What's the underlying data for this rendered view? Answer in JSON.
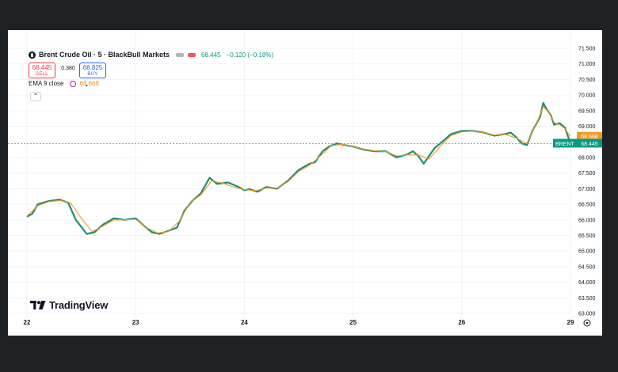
{
  "header": {
    "title": "Brent Crude Oil · 5 · BlackBull Markets",
    "price": "68.445",
    "change": "−0.120 (−0.18%)",
    "colors": {
      "pill_gray": "#b2b5be",
      "pill_red": "#f7525f"
    }
  },
  "trade": {
    "sell_price": "68.445",
    "sell_label": "SELL",
    "spread": "0.380",
    "buy_price": "68.825",
    "buy_label": "BUY"
  },
  "indicator": {
    "label": "EMA 9 close",
    "value": "68.668"
  },
  "watermark": "TradingView",
  "price_tags": {
    "ema": {
      "text": "68.668",
      "color": "#f59a23"
    },
    "last": {
      "symbol": "BRENT",
      "text": "68.445",
      "color": "#089981"
    }
  },
  "colors": {
    "line": "#1f8f6e",
    "ema": "#f59a23",
    "grid": "#f0f3fa",
    "dashed_price_line": "#26a69a"
  },
  "chart_data": {
    "type": "line",
    "series": [
      {
        "name": "Brent Crude Oil",
        "color": "#1f8f6e",
        "x": [
          22.0,
          22.05,
          22.1,
          22.2,
          22.3,
          22.38,
          22.45,
          22.55,
          22.62,
          22.7,
          22.8,
          22.9,
          23.0,
          23.08,
          23.15,
          23.22,
          23.3,
          23.38,
          23.45,
          23.52,
          23.6,
          23.68,
          23.75,
          23.85,
          23.95,
          24.0,
          24.05,
          24.12,
          24.2,
          24.3,
          24.4,
          24.5,
          24.6,
          24.65,
          24.72,
          24.78,
          24.85,
          24.92,
          25.0,
          25.1,
          25.2,
          25.3,
          25.4,
          25.5,
          25.55,
          25.6,
          25.65,
          25.7,
          25.75,
          25.82,
          25.9,
          26.0,
          26.1,
          26.2,
          26.3,
          26.4,
          26.45,
          26.5,
          26.55,
          26.6,
          26.65,
          26.72,
          26.75,
          26.78,
          26.82,
          26.85,
          26.9,
          26.95,
          27.0
        ],
        "values": [
          66.1,
          66.2,
          66.5,
          66.6,
          66.65,
          66.55,
          66.0,
          65.55,
          65.6,
          65.85,
          66.05,
          66.0,
          66.05,
          65.8,
          65.6,
          65.55,
          65.65,
          65.75,
          66.3,
          66.6,
          66.85,
          67.35,
          67.15,
          67.2,
          67.05,
          66.95,
          66.98,
          66.9,
          67.05,
          67.0,
          67.25,
          67.6,
          67.8,
          67.85,
          68.2,
          68.35,
          68.45,
          68.4,
          68.35,
          68.25,
          68.2,
          68.2,
          68.0,
          68.1,
          68.2,
          68.05,
          67.8,
          68.05,
          68.3,
          68.5,
          68.75,
          68.85,
          68.85,
          68.8,
          68.7,
          68.75,
          68.8,
          68.65,
          68.45,
          68.4,
          68.85,
          69.3,
          69.75,
          69.55,
          69.35,
          69.05,
          69.1,
          68.95,
          68.45
        ]
      },
      {
        "name": "EMA 9 close",
        "color": "#f59a23",
        "x": [
          22.0,
          22.1,
          22.2,
          22.3,
          22.4,
          22.5,
          22.6,
          22.7,
          22.8,
          22.9,
          23.0,
          23.1,
          23.2,
          23.3,
          23.4,
          23.5,
          23.6,
          23.7,
          23.8,
          23.9,
          24.0,
          24.1,
          24.2,
          24.3,
          24.4,
          24.5,
          24.6,
          24.7,
          24.8,
          24.9,
          25.0,
          25.1,
          25.2,
          25.3,
          25.4,
          25.5,
          25.6,
          25.7,
          25.8,
          25.9,
          26.0,
          26.1,
          26.2,
          26.3,
          26.4,
          26.5,
          26.6,
          26.7,
          26.75,
          26.8,
          26.85,
          26.9,
          26.95,
          27.0
        ],
        "values": [
          66.12,
          66.45,
          66.58,
          66.62,
          66.55,
          66.05,
          65.62,
          65.8,
          66.0,
          66.0,
          66.02,
          65.75,
          65.58,
          65.62,
          65.95,
          66.55,
          66.8,
          67.25,
          67.18,
          67.05,
          66.97,
          66.93,
          67.02,
          67.02,
          67.22,
          67.55,
          67.75,
          68.05,
          68.38,
          68.42,
          68.35,
          68.27,
          68.21,
          68.19,
          68.05,
          68.08,
          68.08,
          67.95,
          68.35,
          68.7,
          68.82,
          68.84,
          68.8,
          68.72,
          68.74,
          68.62,
          68.45,
          69.2,
          69.62,
          69.45,
          69.12,
          69.05,
          68.92,
          68.67
        ]
      }
    ],
    "x_ticks": [
      "22",
      "23",
      "24",
      "25",
      "26",
      "29"
    ],
    "y_ticks": [
      "71.500",
      "71.000",
      "70.500",
      "70.000",
      "69.500",
      "69.000",
      "68.500",
      "68.000",
      "67.500",
      "67.000",
      "66.500",
      "66.000",
      "65.500",
      "65.000",
      "64.500",
      "64.000",
      "63.500",
      "63.000"
    ],
    "ylim": [
      63.0,
      71.5
    ],
    "xlim": [
      22.0,
      27.0
    ],
    "grid": true,
    "title": "Brent Crude Oil · 5 · BlackBull Markets",
    "last_price": 68.445,
    "ema_value": 68.668
  }
}
